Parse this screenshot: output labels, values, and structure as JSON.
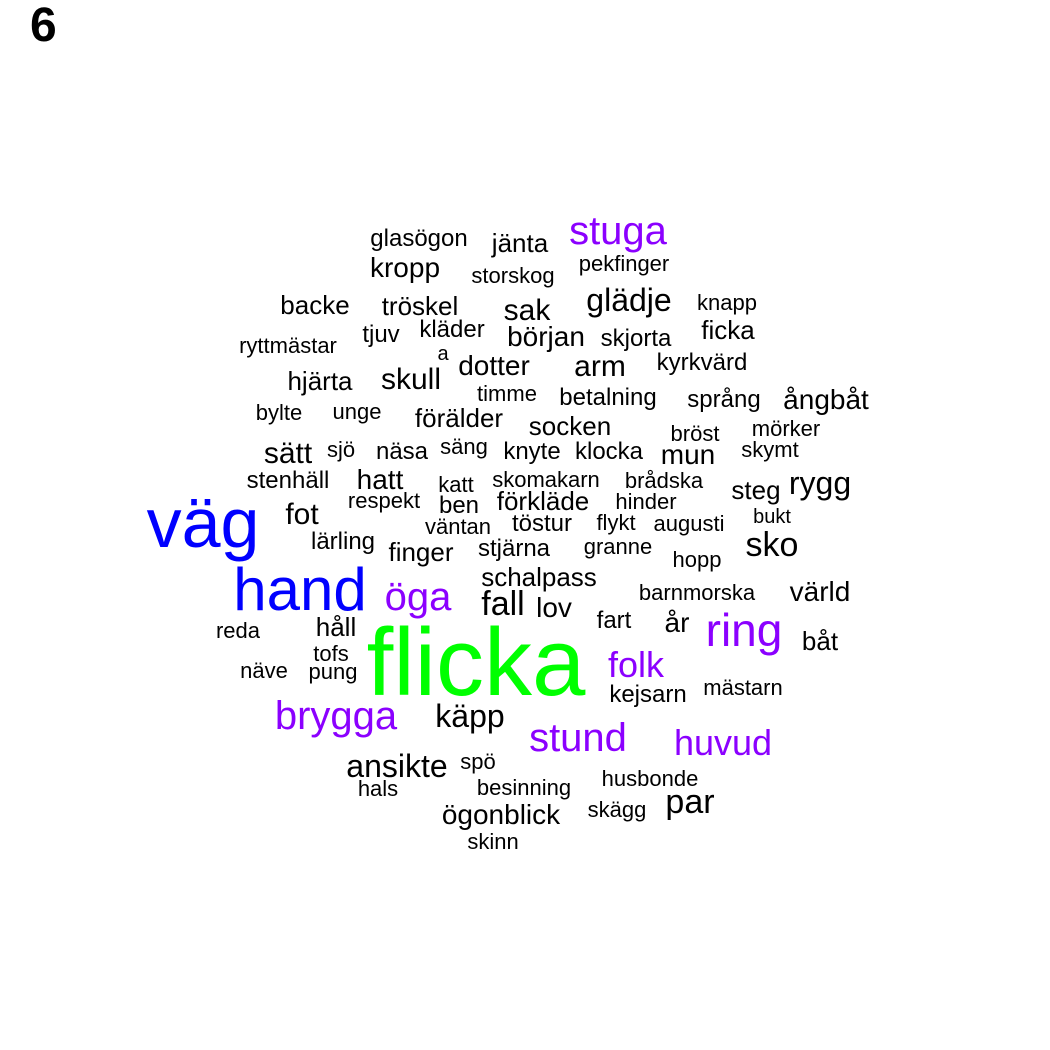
{
  "panel_label": "6",
  "colors": {
    "black": "#000000",
    "purple": "#8b00ff",
    "blue": "#0000ff",
    "green": "#00ff00"
  },
  "words": [
    {
      "text": "flicka",
      "color": "green"
    },
    {
      "text": "väg",
      "color": "blue"
    },
    {
      "text": "hand",
      "color": "blue"
    },
    {
      "text": "ring",
      "color": "purple"
    },
    {
      "text": "stuga",
      "color": "purple"
    },
    {
      "text": "öga",
      "color": "purple"
    },
    {
      "text": "brygga",
      "color": "purple"
    },
    {
      "text": "stund",
      "color": "purple"
    },
    {
      "text": "huvud",
      "color": "purple"
    },
    {
      "text": "folk",
      "color": "purple"
    },
    {
      "text": "glasögon",
      "color": "black"
    },
    {
      "text": "jänta",
      "color": "black"
    },
    {
      "text": "kropp",
      "color": "black"
    },
    {
      "text": "storskog",
      "color": "black"
    },
    {
      "text": "pekfinger",
      "color": "black"
    },
    {
      "text": "backe",
      "color": "black"
    },
    {
      "text": "tröskel",
      "color": "black"
    },
    {
      "text": "sak",
      "color": "black"
    },
    {
      "text": "glädje",
      "color": "black"
    },
    {
      "text": "knapp",
      "color": "black"
    },
    {
      "text": "tjuv",
      "color": "black"
    },
    {
      "text": "kläder",
      "color": "black"
    },
    {
      "text": "början",
      "color": "black"
    },
    {
      "text": "skjorta",
      "color": "black"
    },
    {
      "text": "ficka",
      "color": "black"
    },
    {
      "text": "ryttmästar",
      "color": "black"
    },
    {
      "text": "a",
      "color": "black"
    },
    {
      "text": "dotter",
      "color": "black"
    },
    {
      "text": "arm",
      "color": "black"
    },
    {
      "text": "kyrkvärd",
      "color": "black"
    },
    {
      "text": "hjärta",
      "color": "black"
    },
    {
      "text": "skull",
      "color": "black"
    },
    {
      "text": "timme",
      "color": "black"
    },
    {
      "text": "betalning",
      "color": "black"
    },
    {
      "text": "språng",
      "color": "black"
    },
    {
      "text": "ångbåt",
      "color": "black"
    },
    {
      "text": "bylte",
      "color": "black"
    },
    {
      "text": "unge",
      "color": "black"
    },
    {
      "text": "förälder",
      "color": "black"
    },
    {
      "text": "socken",
      "color": "black"
    },
    {
      "text": "bröst",
      "color": "black"
    },
    {
      "text": "mörker",
      "color": "black"
    },
    {
      "text": "sätt",
      "color": "black"
    },
    {
      "text": "sjö",
      "color": "black"
    },
    {
      "text": "näsa",
      "color": "black"
    },
    {
      "text": "säng",
      "color": "black"
    },
    {
      "text": "knyte",
      "color": "black"
    },
    {
      "text": "klocka",
      "color": "black"
    },
    {
      "text": "mun",
      "color": "black"
    },
    {
      "text": "skymt",
      "color": "black"
    },
    {
      "text": "stenhäll",
      "color": "black"
    },
    {
      "text": "hatt",
      "color": "black"
    },
    {
      "text": "katt",
      "color": "black"
    },
    {
      "text": "skomakarn",
      "color": "black"
    },
    {
      "text": "brådska",
      "color": "black"
    },
    {
      "text": "steg",
      "color": "black"
    },
    {
      "text": "rygg",
      "color": "black"
    },
    {
      "text": "respekt",
      "color": "black"
    },
    {
      "text": "ben",
      "color": "black"
    },
    {
      "text": "förkläde",
      "color": "black"
    },
    {
      "text": "hinder",
      "color": "black"
    },
    {
      "text": "fot",
      "color": "black"
    },
    {
      "text": "väntan",
      "color": "black"
    },
    {
      "text": "töstur",
      "color": "black"
    },
    {
      "text": "flykt",
      "color": "black"
    },
    {
      "text": "augusti",
      "color": "black"
    },
    {
      "text": "bukt",
      "color": "black"
    },
    {
      "text": "lärling",
      "color": "black"
    },
    {
      "text": "finger",
      "color": "black"
    },
    {
      "text": "stjärna",
      "color": "black"
    },
    {
      "text": "granne",
      "color": "black"
    },
    {
      "text": "sko",
      "color": "black"
    },
    {
      "text": "hopp",
      "color": "black"
    },
    {
      "text": "schalpass",
      "color": "black"
    },
    {
      "text": "fall",
      "color": "black"
    },
    {
      "text": "lov",
      "color": "black"
    },
    {
      "text": "barnmorska",
      "color": "black"
    },
    {
      "text": "värld",
      "color": "black"
    },
    {
      "text": "fart",
      "color": "black"
    },
    {
      "text": "år",
      "color": "black"
    },
    {
      "text": "reda",
      "color": "black"
    },
    {
      "text": "håll",
      "color": "black"
    },
    {
      "text": "båt",
      "color": "black"
    },
    {
      "text": "tofs",
      "color": "black"
    },
    {
      "text": "näve",
      "color": "black"
    },
    {
      "text": "pung",
      "color": "black"
    },
    {
      "text": "kejsarn",
      "color": "black"
    },
    {
      "text": "mästarn",
      "color": "black"
    },
    {
      "text": "käpp",
      "color": "black"
    },
    {
      "text": "ansikte",
      "color": "black"
    },
    {
      "text": "spö",
      "color": "black"
    },
    {
      "text": "husbonde",
      "color": "black"
    },
    {
      "text": "hals",
      "color": "black"
    },
    {
      "text": "besinning",
      "color": "black"
    },
    {
      "text": "par",
      "color": "black"
    },
    {
      "text": "ögonblick",
      "color": "black"
    },
    {
      "text": "skägg",
      "color": "black"
    },
    {
      "text": "skinn",
      "color": "black"
    }
  ]
}
